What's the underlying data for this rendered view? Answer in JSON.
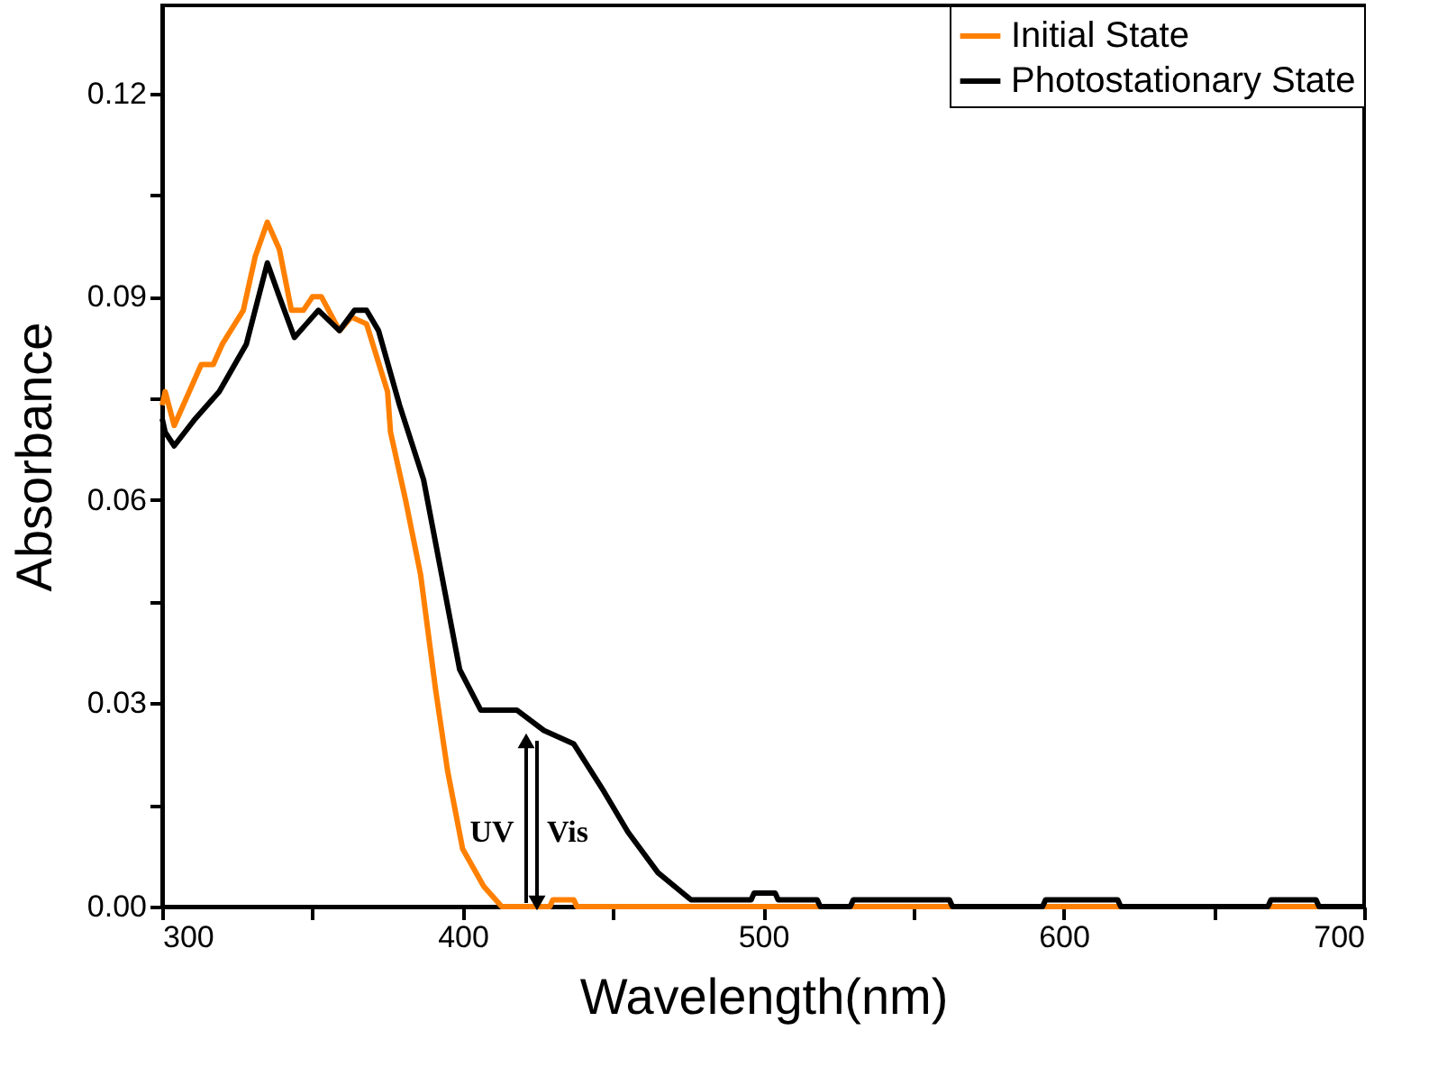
{
  "chart_data": {
    "type": "line",
    "xlabel": "Wavelength(nm)",
    "ylabel": "Absorbance",
    "xlim": [
      300,
      700
    ],
    "ylim": [
      0,
      0.133
    ],
    "xticks": [
      300,
      {
        "value": 350,
        "label": null
      },
      400,
      {
        "value": 450,
        "label": null
      },
      500,
      {
        "value": 550,
        "label": null
      },
      600,
      {
        "value": 650,
        "label": null
      },
      700
    ],
    "yticks": [
      {
        "value": 0,
        "label": "0.00"
      },
      {
        "value": 0.015,
        "label": null
      },
      {
        "value": 0.03,
        "label": "0.03"
      },
      {
        "value": 0.045,
        "label": null
      },
      {
        "value": 0.06,
        "label": "0.06"
      },
      {
        "value": 0.075,
        "label": null
      },
      {
        "value": 0.09,
        "label": "0.09"
      },
      {
        "value": 0.105,
        "label": null
      },
      {
        "value": 0.12,
        "label": "0.12"
      }
    ],
    "grid": false,
    "legend": "top right",
    "line_style": "solid",
    "marker": "none",
    "series": [
      {
        "name": "Initial State",
        "color": "#ff8000",
        "x": [
          300,
          301,
          304,
          313,
          317,
          320,
          327,
          331,
          335,
          339,
          343,
          347,
          350,
          353,
          359,
          363,
          368,
          375,
          376,
          381,
          386,
          391,
          395,
          400,
          407,
          413,
          429,
          430,
          437,
          438,
          700
        ],
        "values": [
          0.074,
          0.076,
          0.071,
          0.08,
          0.08,
          0.083,
          0.088,
          0.096,
          0.101,
          0.097,
          0.088,
          0.088,
          0.09,
          0.09,
          0.085,
          0.087,
          0.086,
          0.076,
          0.07,
          0.06,
          0.049,
          0.032,
          0.02,
          0.0085,
          0.003,
          0.0,
          0.0,
          0.001,
          0.001,
          0.0,
          0.0
        ]
      },
      {
        "name": "Photostationary State",
        "color": "#000000",
        "x": [
          300,
          301,
          304,
          311,
          319,
          328,
          335,
          339,
          344,
          348,
          352,
          359,
          364,
          368,
          372,
          379,
          387,
          393,
          399,
          406,
          418,
          427,
          437,
          447,
          455,
          465,
          476,
          496,
          497,
          504,
          505,
          518,
          519,
          529,
          530,
          562,
          563,
          593,
          594,
          618,
          619,
          668,
          669,
          684,
          685,
          700
        ],
        "values": [
          0.072,
          0.07,
          0.068,
          0.072,
          0.076,
          0.083,
          0.095,
          0.09,
          0.084,
          0.086,
          0.088,
          0.085,
          0.088,
          0.088,
          0.085,
          0.074,
          0.063,
          0.049,
          0.035,
          0.029,
          0.029,
          0.026,
          0.024,
          0.017,
          0.011,
          0.005,
          0.001,
          0.001,
          0.002,
          0.002,
          0.001,
          0.001,
          0.0,
          0.0,
          0.001,
          0.001,
          0.0,
          0.0,
          0.001,
          0.001,
          0.0,
          0.0,
          0.001,
          0.001,
          0.0,
          0.0
        ]
      }
    ],
    "annotations": [
      "UV",
      "Vis"
    ]
  }
}
